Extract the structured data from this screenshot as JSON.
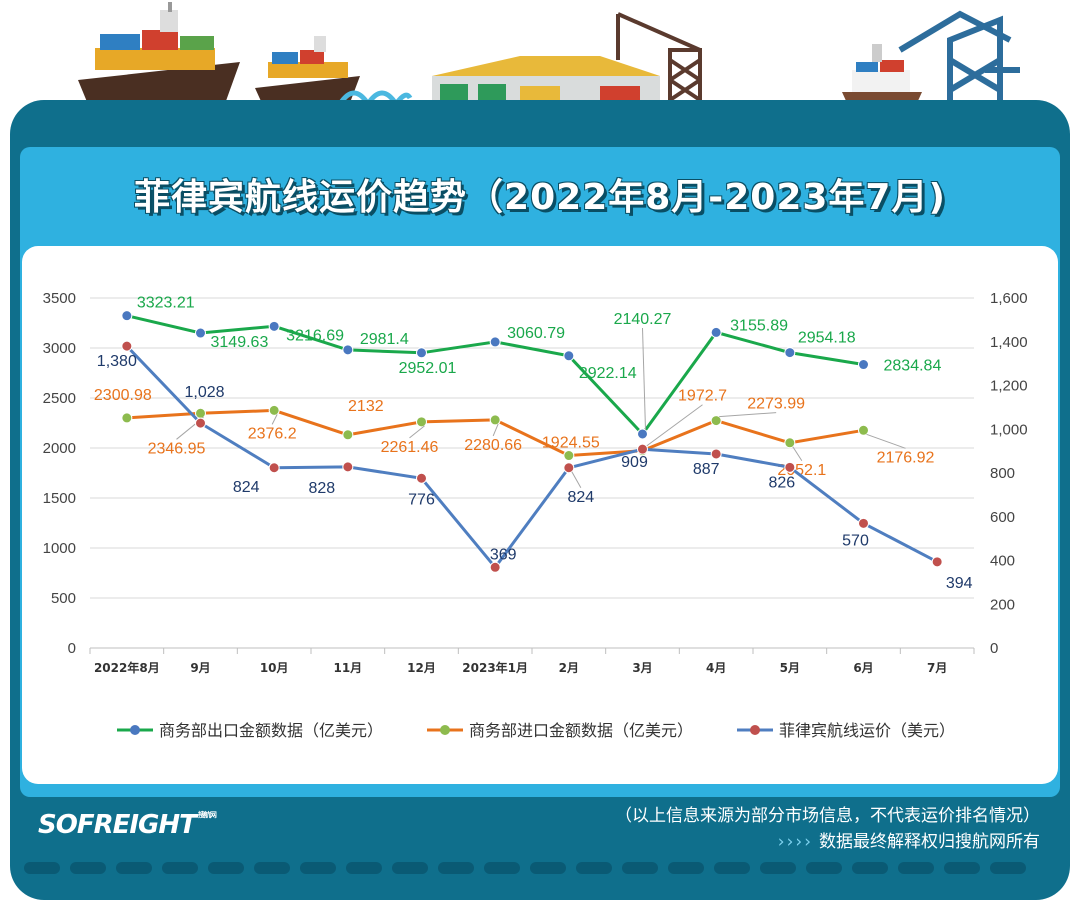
{
  "header": {
    "title": "菲律宾航线运价趋势（2022年8月-2023年7月)"
  },
  "footer": {
    "logo": "SOFREIGHT",
    "logo_small": "搜航网",
    "source_note": "（以上信息来源为部分市场信息，不代表运价排名情况）",
    "arrows": "››››",
    "rights_note": "数据最终解释权归搜航网所有"
  },
  "colors": {
    "frame": "#0f6f8c",
    "panel": "#2fb1e0",
    "export_line": "#1aa84b",
    "import_line": "#e8731c",
    "freight_line": "#4f7ec0",
    "export_marker": "#4a78c0",
    "import_marker": "#8dbb4e",
    "freight_marker": "#c0504d"
  },
  "chart_data": {
    "type": "line",
    "categories": [
      "2022年8月",
      "9月",
      "10月",
      "11月",
      "12月",
      "2023年1月",
      "2月",
      "3月",
      "4月",
      "5月",
      "6月",
      "7月"
    ],
    "y_left": {
      "ylim": [
        0,
        3500
      ],
      "ticks": [
        "0",
        "500",
        "1000",
        "1500",
        "2000",
        "2500",
        "3000",
        "3500"
      ]
    },
    "y_right": {
      "ylim": [
        0,
        1600
      ],
      "ticks": [
        "0",
        "200",
        "400",
        "600",
        "800",
        "1,000",
        "1,200",
        "1,400",
        "1,600"
      ]
    },
    "grid": true,
    "legend_position": "bottom",
    "series": [
      {
        "name": "商务部出口金额数据（亿美元）",
        "axis": "left",
        "values": [
          3323.21,
          3149.63,
          3216.69,
          2981.4,
          2952.01,
          3060.79,
          2922.14,
          2140.27,
          3155.89,
          2954.18,
          2834.84,
          null
        ],
        "labels": [
          "3323.21",
          "3149.63",
          "3216.69",
          "2981.4",
          "2952.01",
          "3060.79",
          "2922.14",
          "2140.27",
          "3155.89",
          "2954.18",
          "2834.84",
          ""
        ]
      },
      {
        "name": "商务部进口金额数据（亿美元）",
        "axis": "left",
        "values": [
          2300.98,
          2346.95,
          2376.2,
          2132,
          2261.46,
          2280.66,
          1924.55,
          1972.7,
          2273.99,
          2052.1,
          2176.92,
          null
        ],
        "labels": [
          "2300.98",
          "2346.95",
          "2376.2",
          "2132",
          "2261.46",
          "2280.66",
          "1924.55",
          "1972.7",
          "2273.99",
          "2052.1",
          "2176.92",
          ""
        ]
      },
      {
        "name": "菲律宾航线运价（美元）",
        "axis": "right",
        "values": [
          1380,
          1028,
          824,
          828,
          776,
          369,
          824,
          909,
          887,
          826,
          570,
          394
        ],
        "labels": [
          "1,380",
          "1,028",
          "824",
          "828",
          "776",
          "369",
          "824",
          "909",
          "887",
          "826",
          "570",
          "394"
        ]
      }
    ]
  }
}
